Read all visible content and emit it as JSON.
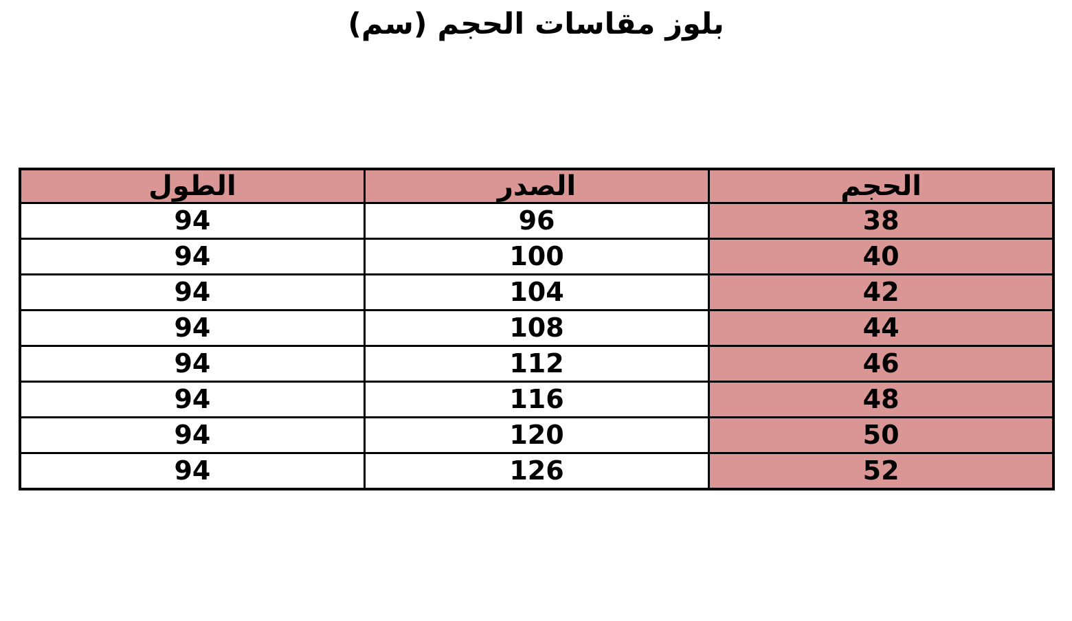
{
  "title": "بلوز مقاسات الحجم (سم)",
  "colors": {
    "header_background": "#D99694",
    "size_column_background": "#D99694",
    "row_background": "#FFFFFF",
    "border": "#000000",
    "text": "#000000"
  },
  "chart_data": {
    "type": "table",
    "title": "بلوز مقاسات الحجم (سم)",
    "direction": "rtl",
    "columns": [
      "الحجم",
      "الصدر",
      "الطول"
    ],
    "rows": [
      [
        "38",
        "96",
        "94"
      ],
      [
        "40",
        "100",
        "94"
      ],
      [
        "42",
        "104",
        "94"
      ],
      [
        "44",
        "108",
        "94"
      ],
      [
        "46",
        "112",
        "94"
      ],
      [
        "48",
        "116",
        "94"
      ],
      [
        "50",
        "120",
        "94"
      ],
      [
        "52",
        "126",
        "94"
      ]
    ]
  }
}
